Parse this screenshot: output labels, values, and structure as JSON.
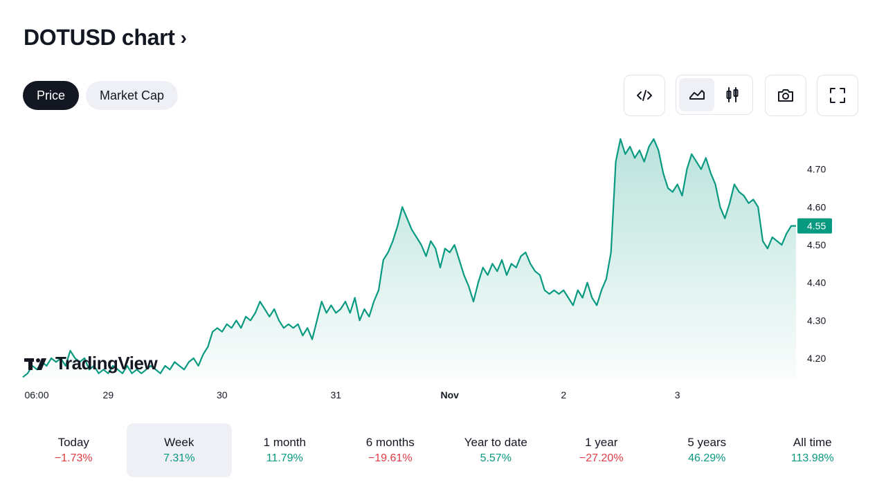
{
  "title": "DOTUSD chart",
  "title_chevron": "›",
  "tabs": [
    {
      "label": "Price",
      "active": true
    },
    {
      "label": "Market Cap",
      "active": false
    }
  ],
  "toolbar": {
    "icons": [
      "embed-code-icon",
      "line-chart-icon",
      "candles-icon",
      "camera-icon",
      "fullscreen-icon"
    ]
  },
  "logo": {
    "text": "TradingView"
  },
  "colors": {
    "line": "#089981",
    "fill_top": "#089981",
    "badge": "#089981",
    "negative": "#e03b45"
  },
  "chart_data": {
    "type": "area",
    "y_ticks": [
      "4.70",
      "4.60",
      "4.50",
      "4.40",
      "4.30",
      "4.20"
    ],
    "x_ticks": [
      {
        "label": "06:00",
        "bold": false,
        "t": 0
      },
      {
        "label": "29",
        "bold": false,
        "t": 18
      },
      {
        "label": "30",
        "bold": false,
        "t": 42
      },
      {
        "label": "31",
        "bold": false,
        "t": 66
      },
      {
        "label": "Nov",
        "bold": true,
        "t": 90
      },
      {
        "label": "2",
        "bold": false,
        "t": 114
      },
      {
        "label": "3",
        "bold": false,
        "t": 138
      }
    ],
    "ylim": [
      4.145,
      4.8
    ],
    "last_price": "4.55",
    "grid": false,
    "points": [
      [
        0,
        4.15
      ],
      [
        1,
        4.16
      ],
      [
        2,
        4.18
      ],
      [
        3,
        4.17
      ],
      [
        4,
        4.19
      ],
      [
        5,
        4.18
      ],
      [
        6,
        4.2
      ],
      [
        7,
        4.19
      ],
      [
        8,
        4.2
      ],
      [
        9,
        4.18
      ],
      [
        10,
        4.22
      ],
      [
        11,
        4.2
      ],
      [
        12,
        4.19
      ],
      [
        13,
        4.2
      ],
      [
        14,
        4.17
      ],
      [
        15,
        4.18
      ],
      [
        16,
        4.16
      ],
      [
        17,
        4.17
      ],
      [
        18,
        4.16
      ],
      [
        19,
        4.18
      ],
      [
        20,
        4.17
      ],
      [
        21,
        4.16
      ],
      [
        22,
        4.18
      ],
      [
        23,
        4.16
      ],
      [
        24,
        4.17
      ],
      [
        25,
        4.16
      ],
      [
        26,
        4.17
      ],
      [
        27,
        4.18
      ],
      [
        28,
        4.17
      ],
      [
        29,
        4.16
      ],
      [
        30,
        4.18
      ],
      [
        31,
        4.17
      ],
      [
        32,
        4.19
      ],
      [
        33,
        4.18
      ],
      [
        34,
        4.17
      ],
      [
        35,
        4.19
      ],
      [
        36,
        4.2
      ],
      [
        37,
        4.18
      ],
      [
        38,
        4.21
      ],
      [
        39,
        4.23
      ],
      [
        40,
        4.27
      ],
      [
        41,
        4.28
      ],
      [
        42,
        4.27
      ],
      [
        43,
        4.29
      ],
      [
        44,
        4.28
      ],
      [
        45,
        4.3
      ],
      [
        46,
        4.28
      ],
      [
        47,
        4.31
      ],
      [
        48,
        4.3
      ],
      [
        49,
        4.32
      ],
      [
        50,
        4.35
      ],
      [
        51,
        4.33
      ],
      [
        52,
        4.31
      ],
      [
        53,
        4.33
      ],
      [
        54,
        4.3
      ],
      [
        55,
        4.28
      ],
      [
        56,
        4.29
      ],
      [
        57,
        4.28
      ],
      [
        58,
        4.29
      ],
      [
        59,
        4.26
      ],
      [
        60,
        4.28
      ],
      [
        61,
        4.25
      ],
      [
        62,
        4.3
      ],
      [
        63,
        4.35
      ],
      [
        64,
        4.32
      ],
      [
        65,
        4.34
      ],
      [
        66,
        4.32
      ],
      [
        67,
        4.33
      ],
      [
        68,
        4.35
      ],
      [
        69,
        4.32
      ],
      [
        70,
        4.36
      ],
      [
        71,
        4.3
      ],
      [
        72,
        4.33
      ],
      [
        73,
        4.31
      ],
      [
        74,
        4.35
      ],
      [
        75,
        4.38
      ],
      [
        76,
        4.46
      ],
      [
        77,
        4.48
      ],
      [
        78,
        4.51
      ],
      [
        79,
        4.55
      ],
      [
        80,
        4.6
      ],
      [
        81,
        4.57
      ],
      [
        82,
        4.54
      ],
      [
        83,
        4.52
      ],
      [
        84,
        4.5
      ],
      [
        85,
        4.47
      ],
      [
        86,
        4.51
      ],
      [
        87,
        4.49
      ],
      [
        88,
        4.44
      ],
      [
        89,
        4.49
      ],
      [
        90,
        4.48
      ],
      [
        91,
        4.5
      ],
      [
        92,
        4.46
      ],
      [
        93,
        4.42
      ],
      [
        94,
        4.39
      ],
      [
        95,
        4.35
      ],
      [
        96,
        4.4
      ],
      [
        97,
        4.44
      ],
      [
        98,
        4.42
      ],
      [
        99,
        4.45
      ],
      [
        100,
        4.43
      ],
      [
        101,
        4.46
      ],
      [
        102,
        4.42
      ],
      [
        103,
        4.45
      ],
      [
        104,
        4.44
      ],
      [
        105,
        4.47
      ],
      [
        106,
        4.48
      ],
      [
        107,
        4.45
      ],
      [
        108,
        4.43
      ],
      [
        109,
        4.42
      ],
      [
        110,
        4.38
      ],
      [
        111,
        4.37
      ],
      [
        112,
        4.38
      ],
      [
        113,
        4.37
      ],
      [
        114,
        4.38
      ],
      [
        115,
        4.36
      ],
      [
        116,
        4.34
      ],
      [
        117,
        4.38
      ],
      [
        118,
        4.36
      ],
      [
        119,
        4.4
      ],
      [
        120,
        4.36
      ],
      [
        121,
        4.34
      ],
      [
        122,
        4.38
      ],
      [
        123,
        4.41
      ],
      [
        124,
        4.48
      ],
      [
        125,
        4.72
      ],
      [
        126,
        4.78
      ],
      [
        127,
        4.74
      ],
      [
        128,
        4.76
      ],
      [
        129,
        4.73
      ],
      [
        130,
        4.75
      ],
      [
        131,
        4.72
      ],
      [
        132,
        4.76
      ],
      [
        133,
        4.78
      ],
      [
        134,
        4.75
      ],
      [
        135,
        4.69
      ],
      [
        136,
        4.65
      ],
      [
        137,
        4.64
      ],
      [
        138,
        4.66
      ],
      [
        139,
        4.63
      ],
      [
        140,
        4.7
      ],
      [
        141,
        4.74
      ],
      [
        142,
        4.72
      ],
      [
        143,
        4.7
      ],
      [
        144,
        4.73
      ],
      [
        145,
        4.69
      ],
      [
        146,
        4.66
      ],
      [
        147,
        4.6
      ],
      [
        148,
        4.57
      ],
      [
        149,
        4.61
      ],
      [
        150,
        4.66
      ],
      [
        151,
        4.64
      ],
      [
        152,
        4.63
      ],
      [
        153,
        4.61
      ],
      [
        154,
        4.62
      ],
      [
        155,
        4.6
      ],
      [
        156,
        4.51
      ],
      [
        157,
        4.49
      ],
      [
        158,
        4.52
      ],
      [
        159,
        4.51
      ],
      [
        160,
        4.5
      ],
      [
        161,
        4.53
      ],
      [
        162,
        4.55
      ],
      [
        163,
        4.55
      ]
    ]
  },
  "periods": [
    {
      "label": "Today",
      "value": "−1.73%",
      "trend": "neg",
      "selected": false
    },
    {
      "label": "Week",
      "value": "7.31%",
      "trend": "pos",
      "selected": true
    },
    {
      "label": "1 month",
      "value": "11.79%",
      "trend": "pos",
      "selected": false
    },
    {
      "label": "6 months",
      "value": "−19.61%",
      "trend": "neg",
      "selected": false
    },
    {
      "label": "Year to date",
      "value": "5.57%",
      "trend": "pos",
      "selected": false
    },
    {
      "label": "1 year",
      "value": "−27.20%",
      "trend": "neg",
      "selected": false
    },
    {
      "label": "5 years",
      "value": "46.29%",
      "trend": "pos",
      "selected": false
    },
    {
      "label": "All time",
      "value": "113.98%",
      "trend": "pos",
      "selected": false
    }
  ]
}
